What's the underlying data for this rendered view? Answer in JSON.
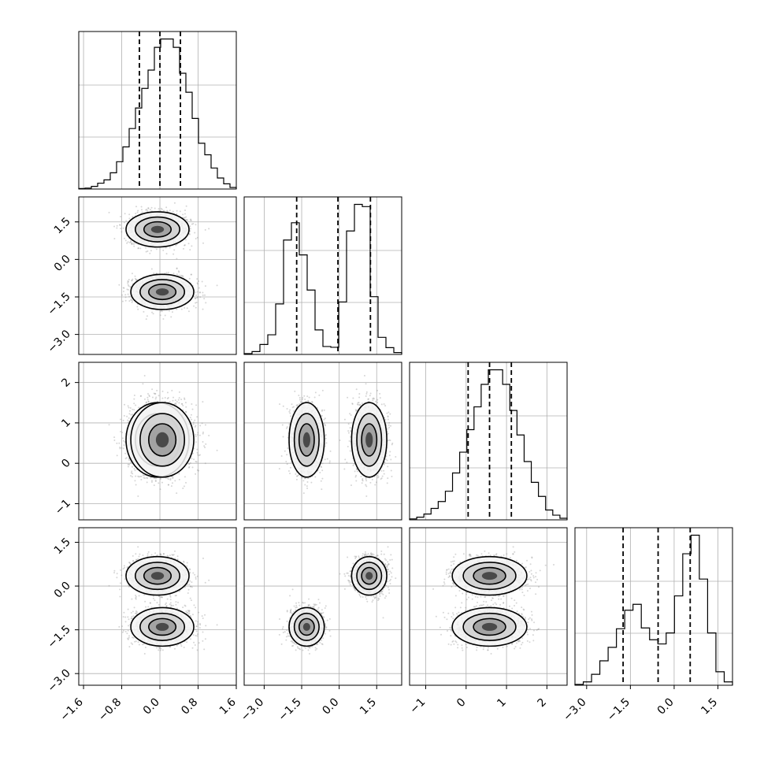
{
  "chart_data": {
    "type": "corner",
    "n_params": 4,
    "grid": true,
    "colors": {
      "line": "#000000",
      "grid": "#b0b0b0",
      "density": "#000000",
      "frame": "#000000"
    },
    "params": [
      {
        "range": [
          -1.7,
          1.6
        ],
        "ticks": [
          -1.6,
          -0.8,
          0.0,
          0.8,
          1.6
        ],
        "tick_labels": [
          "−1.6",
          "−0.8",
          "0.0",
          "0.8",
          "1.6"
        ],
        "quantiles": [
          -0.43,
          0.0,
          0.43
        ],
        "hist": [
          0.3,
          0.6,
          1.7,
          3.7,
          5.8,
          10.3,
          17.3,
          26.7,
          38.3,
          51.3,
          63.7,
          75.3,
          89.7,
          95.0,
          95.0,
          89.7,
          73.3,
          61.3,
          44.7,
          29.0,
          21.7,
          13.3,
          7.0,
          3.3,
          1.0
        ]
      },
      {
        "range": [
          -3.8,
          2.5
        ],
        "ticks": [
          -3.0,
          -1.5,
          0.0,
          1.5
        ],
        "tick_labels": [
          "−3.0",
          "−1.5",
          "0.0",
          "1.5"
        ],
        "quantiles": [
          -1.7,
          -0.05,
          1.25
        ],
        "hist": [
          0.5,
          1.8,
          6.3,
          12.4,
          31.9,
          72.3,
          83.2,
          62.9,
          40.7,
          15.5,
          5.0,
          4.5,
          33.2,
          78.0,
          94.8,
          93.4,
          36.5,
          10.8,
          4.3,
          1.2
        ]
      },
      {
        "range": [
          -1.4,
          2.5
        ],
        "ticks": [
          -1,
          0,
          1,
          2
        ],
        "tick_labels": [
          "−1",
          "0",
          "1",
          "2"
        ],
        "quantiles": [
          0.05,
          0.58,
          1.12
        ],
        "hist": [
          0.6,
          1.7,
          3.7,
          7.3,
          11.7,
          18.3,
          30.0,
          43.3,
          57.7,
          72.3,
          86.7,
          96.0,
          96.0,
          86.7,
          70.0,
          54.3,
          37.3,
          24.0,
          15.0,
          6.3,
          3.0,
          1.0
        ]
      },
      {
        "range": [
          -3.4,
          2.0
        ],
        "ticks": [
          -3.0,
          -1.5,
          0.0,
          1.5
        ],
        "tick_labels": [
          "−3.0",
          "−1.5",
          "0.0",
          "1.5"
        ],
        "quantiles": [
          -1.75,
          -0.55,
          0.55
        ],
        "hist": [
          0.5,
          2.0,
          6.5,
          14.5,
          22.5,
          33.5,
          44.5,
          48.0,
          34.0,
          27.0,
          24.5,
          31.0,
          53.0,
          78.0,
          89.0,
          63.0,
          31.0,
          8.0,
          2.0
        ]
      }
    ],
    "components": [
      {
        "weight": 0.5,
        "mean": [
          -0.05,
          1.2,
          0.58,
          0.35
        ],
        "std": [
          0.3,
          0.32,
          0.42,
          0.3
        ]
      },
      {
        "weight": 0.5,
        "mean": [
          0.05,
          -1.3,
          0.58,
          -1.4
        ],
        "std": [
          0.3,
          0.32,
          0.42,
          0.3
        ]
      }
    ]
  }
}
